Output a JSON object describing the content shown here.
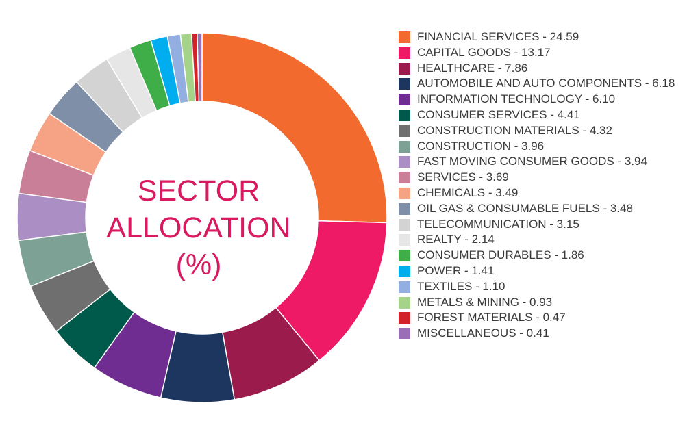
{
  "chart_data": {
    "type": "pie",
    "title": "SECTOR ALLOCATION (%)",
    "title_lines": [
      "SECTOR",
      "ALLOCATION",
      "(%)"
    ],
    "legend_position": "right",
    "slices": [
      {
        "label": "FINANCIAL SERVICES - 24.59",
        "name": "FINANCIAL SERVICES",
        "value": 24.59,
        "color": "#f26a2e"
      },
      {
        "label": "CAPITAL GOODS - 13.17",
        "name": "CAPITAL GOODS",
        "value": 13.17,
        "color": "#ee1a65"
      },
      {
        "label": "HEALTHCARE - 7.86",
        "name": "HEALTHCARE",
        "value": 7.86,
        "color": "#9b1b4c"
      },
      {
        "label": "AUTOMOBILE AND AUTO COMPONENTS - 6.18",
        "name": "AUTOMOBILE AND AUTO COMPONENTS",
        "value": 6.18,
        "color": "#1c365f"
      },
      {
        "label": "INFORMATION TECHNOLOGY - 6.10",
        "name": "INFORMATION TECHNOLOGY",
        "value": 6.1,
        "color": "#6f2c91"
      },
      {
        "label": "CONSUMER SERVICES - 4.41",
        "name": "CONSUMER SERVICES",
        "value": 4.41,
        "color": "#005a4b"
      },
      {
        "label": "CONSTRUCTION MATERIALS - 4.32",
        "name": "CONSTRUCTION MATERIALS",
        "value": 4.32,
        "color": "#6f6f6f"
      },
      {
        "label": "CONSTRUCTION - 3.96",
        "name": "CONSTRUCTION",
        "value": 3.96,
        "color": "#7ea196"
      },
      {
        "label": "FAST MOVING CONSUMER GOODS - 3.94",
        "name": "FAST MOVING CONSUMER GOODS",
        "value": 3.94,
        "color": "#ab8ec3"
      },
      {
        "label": "SERVICES - 3.69",
        "name": "SERVICES",
        "value": 3.69,
        "color": "#c97f98"
      },
      {
        "label": "CHEMICALS - 3.49",
        "name": "CHEMICALS",
        "value": 3.49,
        "color": "#f6a385"
      },
      {
        "label": "OIL GAS & CONSUMABLE FUELS - 3.48",
        "name": "OIL GAS & CONSUMABLE FUELS",
        "value": 3.48,
        "color": "#808fa8"
      },
      {
        "label": "TELECOMMUNICATION - 3.15",
        "name": "TELECOMMUNICATION",
        "value": 3.15,
        "color": "#d3d3d3"
      },
      {
        "label": "REALTY - 2.14",
        "name": "REALTY",
        "value": 2.14,
        "color": "#e6e6e6"
      },
      {
        "label": "CONSUMER DURABLES - 1.86",
        "name": "CONSUMER DURABLES",
        "value": 1.86,
        "color": "#3fae49"
      },
      {
        "label": "POWER - 1.41",
        "name": "POWER",
        "value": 1.41,
        "color": "#00aeef"
      },
      {
        "label": "TEXTILES - 1.10",
        "name": "TEXTILES",
        "value": 1.1,
        "color": "#93aee0"
      },
      {
        "label": "METALS & MINING - 0.93",
        "name": "METALS & MINING",
        "value": 0.93,
        "color": "#a6d38a"
      },
      {
        "label": "FOREST MATERIALS - 0.47",
        "name": "FOREST MATERIALS",
        "value": 0.47,
        "color": "#d2232a"
      },
      {
        "label": "MISCELLANEOUS - 0.41",
        "name": "MISCELLANEOUS",
        "value": 0.41,
        "color": "#9b6fb5"
      }
    ]
  }
}
